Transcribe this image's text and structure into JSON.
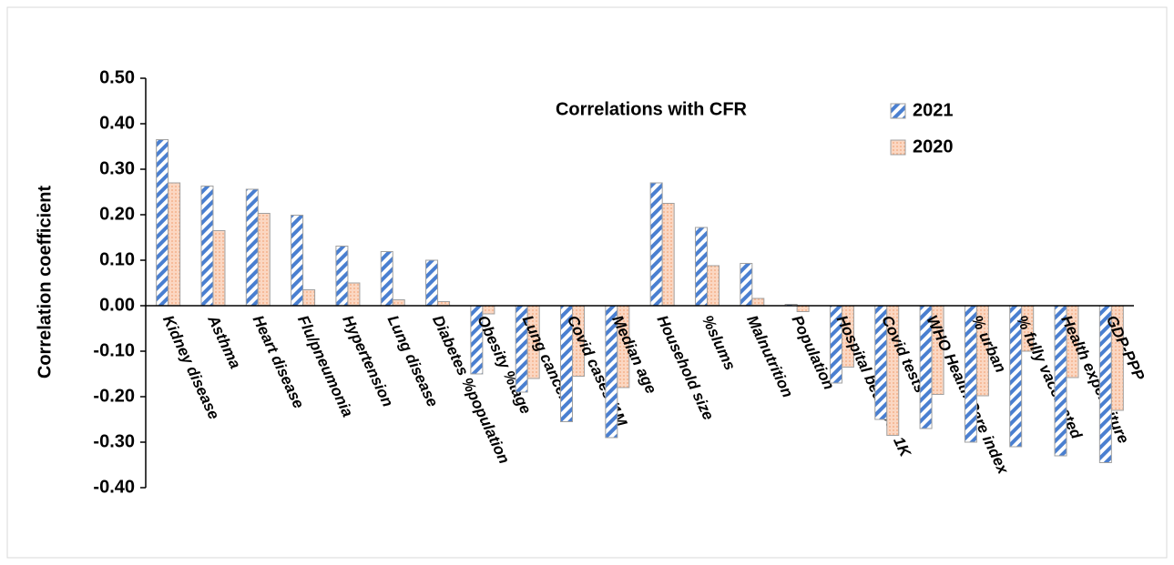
{
  "chart_data": {
    "type": "bar",
    "title": "Correlations with CFR",
    "y_label": "Correlation coefficient",
    "categories": [
      "Kidney disease",
      "Asthma",
      "Heart disease",
      "Flu/pneumonia",
      "Hypertension",
      "Lung disease",
      "Diabetes %population",
      "Obesity %tage",
      "Lung cancers",
      "Covid cases /1M",
      "Median age",
      "Household size",
      "%slums",
      "Malnutrition",
      "Population",
      "Hospital beds per 1K",
      "Covid tests",
      "WHO Health Care index",
      "% urban",
      "% fully vaccinated",
      "Health expenditure",
      "GDP-PPP"
    ],
    "series": [
      {
        "name": "2021",
        "color": "#4a7fd0",
        "values": [
          0.365,
          0.263,
          0.256,
          0.199,
          0.131,
          0.119,
          0.1,
          -0.15,
          -0.19,
          -0.255,
          -0.29,
          0.27,
          0.172,
          0.093,
          0.003,
          -0.17,
          -0.25,
          -0.27,
          -0.3,
          -0.31,
          -0.33,
          -0.345
        ]
      },
      {
        "name": "2020",
        "color": "#f4a77c",
        "values": [
          0.27,
          0.165,
          0.203,
          0.035,
          0.05,
          0.013,
          0.009,
          -0.018,
          -0.16,
          -0.155,
          -0.18,
          0.225,
          0.088,
          0.016,
          -0.013,
          -0.135,
          -0.285,
          -0.195,
          -0.198,
          -0.1,
          -0.158,
          -0.23
        ]
      }
    ],
    "ylim": [
      -0.4,
      0.5
    ],
    "yticks": [
      {
        "value": -0.4,
        "label": "-0.40"
      },
      {
        "value": -0.3,
        "label": "-0.30"
      },
      {
        "value": -0.2,
        "label": "-0.20"
      },
      {
        "value": -0.1,
        "label": "-0.10"
      },
      {
        "value": 0,
        "label": "0.00"
      },
      {
        "value": 0.1,
        "label": "0.10"
      },
      {
        "value": 0.2,
        "label": "0.20"
      },
      {
        "value": 0.3,
        "label": "0.30"
      },
      {
        "value": 0.4,
        "label": "0.40"
      },
      {
        "value": 0.5,
        "label": "0.50"
      }
    ],
    "grid": false
  }
}
